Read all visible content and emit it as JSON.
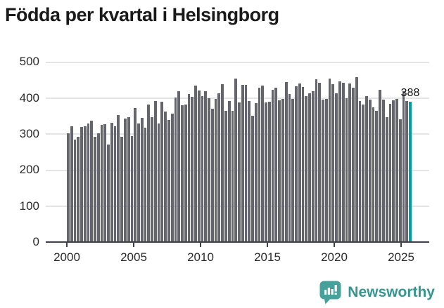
{
  "title": "Födda per kvartal i Helsingborg",
  "chart_data": {
    "type": "bar",
    "title": "Födda per kvartal i Helsingborg",
    "xlabel": "",
    "ylabel": "",
    "ylim": [
      0,
      500
    ],
    "grid": true,
    "legend": "none",
    "x_start": "2000 Q1",
    "x_end": "2025 Q3",
    "x_tick_labels": [
      "2000",
      "2005",
      "2010",
      "2015",
      "2020",
      "2025"
    ],
    "y_tick_labels": [
      "0",
      "100",
      "200",
      "300",
      "400",
      "500"
    ],
    "values": [
      300,
      320,
      284,
      291,
      318,
      321,
      329,
      335,
      291,
      300,
      324,
      326,
      270,
      330,
      320,
      351,
      291,
      341,
      346,
      292,
      371,
      329,
      343,
      317,
      380,
      345,
      390,
      328,
      389,
      362,
      337,
      355,
      400,
      417,
      378,
      381,
      410,
      402,
      433,
      419,
      404,
      417,
      399,
      370,
      396,
      412,
      438,
      363,
      391,
      363,
      454,
      386,
      436,
      436,
      391,
      350,
      384,
      427,
      434,
      387,
      388,
      421,
      427,
      393,
      397,
      443,
      410,
      396,
      432,
      440,
      430,
      404,
      412,
      417,
      451,
      441,
      395,
      397,
      454,
      437,
      413,
      445,
      441,
      399,
      440,
      428,
      458,
      390,
      380,
      404,
      395,
      373,
      363,
      421,
      395,
      346,
      383,
      392,
      397,
      340,
      418,
      390,
      388
    ],
    "highlight": {
      "index": 102,
      "label": "388",
      "color": "#00a0a0"
    }
  },
  "colors": {
    "title": "#1a1a1a",
    "tick_label": "#2b2b2b",
    "bar": "#65656d",
    "accent": "#00a0a0",
    "axis": "#3f3f47",
    "grid": "#e4e4e4",
    "logo_icon": "#46a19a",
    "logo_text": "#35968f"
  },
  "footer": {
    "brand": "Newsworthy"
  }
}
